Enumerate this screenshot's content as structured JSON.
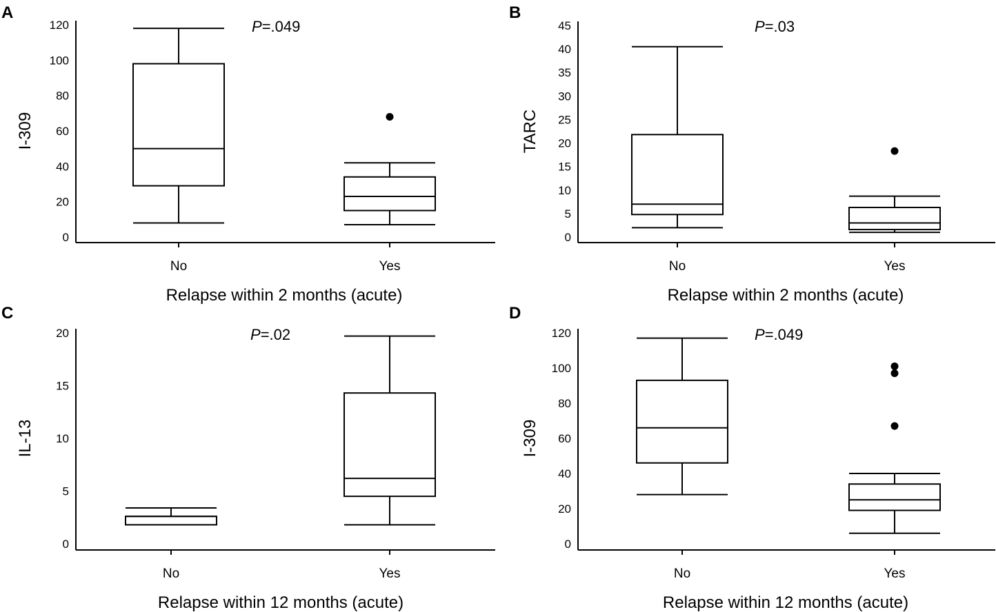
{
  "chart_data": [
    {
      "type": "box",
      "panel": "A",
      "ylabel": "I-309",
      "xlabel": "Relapse within 2 months (acute)",
      "p_label": "P",
      "p_value": "=.049",
      "ylim": [
        0,
        120
      ],
      "yticks": [
        0,
        20,
        40,
        60,
        80,
        100,
        120
      ],
      "categories": [
        "No",
        "Yes"
      ],
      "boxes": [
        {
          "min": 8,
          "q1": 29,
          "median": 50,
          "q3": 98,
          "max": 118,
          "outliers": []
        },
        {
          "min": 7,
          "q1": 15,
          "median": 23,
          "q3": 34,
          "max": 42,
          "outliers": [
            68
          ]
        }
      ]
    },
    {
      "type": "box",
      "panel": "B",
      "ylabel": "TARC",
      "xlabel": "Relapse within 2 months (acute)",
      "p_label": "P",
      "p_value": "=.03",
      "ylim": [
        0,
        45
      ],
      "yticks": [
        0,
        5,
        10,
        15,
        20,
        25,
        30,
        35,
        40,
        45
      ],
      "categories": [
        "No",
        "Yes"
      ],
      "boxes": [
        {
          "min": 2,
          "q1": 4.8,
          "median": 7,
          "q3": 21.8,
          "max": 40.5,
          "outliers": []
        },
        {
          "min": 1,
          "q1": 1.6,
          "median": 3,
          "q3": 6.3,
          "max": 8.7,
          "outliers": [
            18.3
          ]
        }
      ]
    },
    {
      "type": "box",
      "panel": "C",
      "ylabel": "IL-13",
      "xlabel": "Relapse within 12 months (acute)",
      "p_label": "P",
      "p_value": "=.02",
      "ylim": [
        0,
        20
      ],
      "yticks": [
        0,
        5,
        10,
        15,
        20
      ],
      "categories": [
        "No",
        "Yes"
      ],
      "boxes": [
        {
          "min": 1.8,
          "q1": 1.8,
          "median": 2.6,
          "q3": 2.6,
          "max": 3.4,
          "outliers": []
        },
        {
          "min": 1.8,
          "q1": 4.5,
          "median": 6.2,
          "q3": 14.3,
          "max": 19.7,
          "outliers": []
        }
      ]
    },
    {
      "type": "box",
      "panel": "D",
      "ylabel": "I-309",
      "xlabel": "Relapse within 12 months (acute)",
      "p_label": "P",
      "p_value": "=.049",
      "ylim": [
        0,
        120
      ],
      "yticks": [
        0,
        20,
        40,
        60,
        80,
        100,
        120
      ],
      "categories": [
        "No",
        "Yes"
      ],
      "boxes": [
        {
          "min": 28,
          "q1": 46,
          "median": 66,
          "q3": 93,
          "max": 117,
          "outliers": []
        },
        {
          "min": 6,
          "q1": 19,
          "median": 25,
          "q3": 34,
          "max": 40,
          "outliers": [
            67,
            97,
            101
          ]
        }
      ]
    }
  ]
}
